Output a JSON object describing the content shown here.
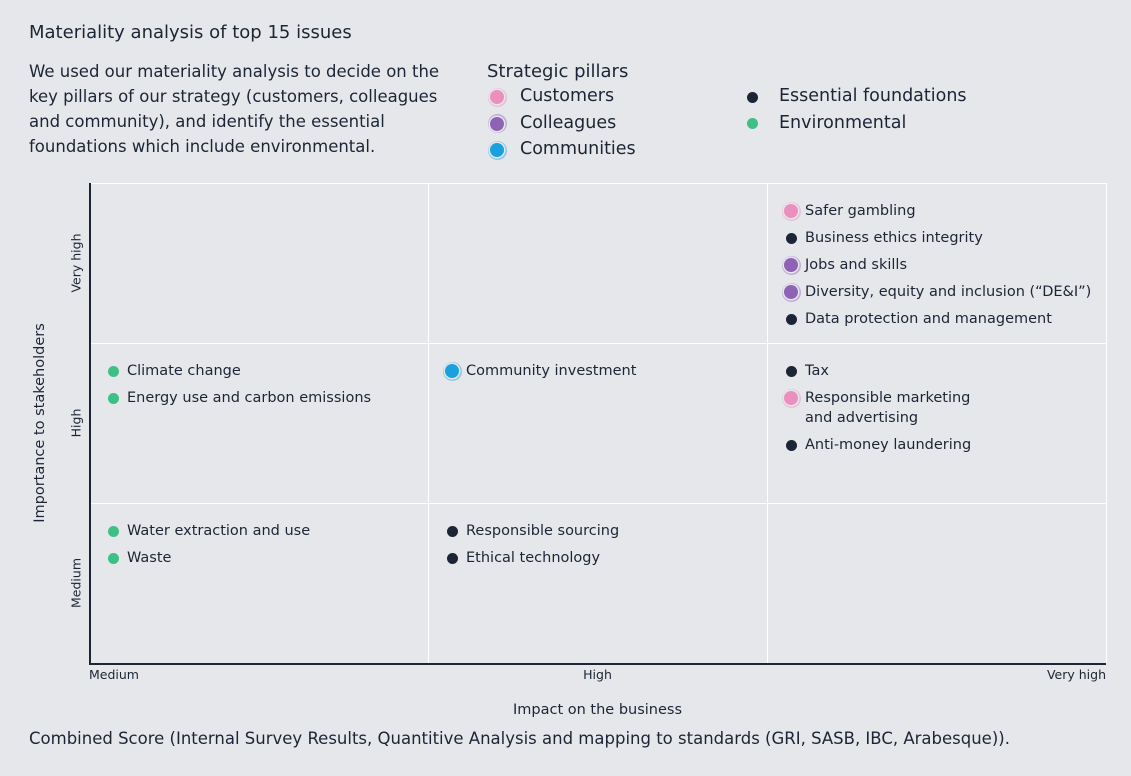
{
  "title": "Materiality analysis of top 15 issues",
  "description": "We used our materiality analysis to decide on the key pillars of our strategy (customers, colleagues and community), and identify the essential foundations which include environmental.",
  "legend": {
    "pillars": {
      "title": "Strategic pillars",
      "items": [
        {
          "label": "Customers",
          "color": "#ea8fbe"
        },
        {
          "label": "Colleagues",
          "color": "#8e63b6"
        },
        {
          "label": "Communities",
          "color": "#1aa0dc"
        }
      ]
    },
    "foundations": [
      {
        "label": "Essential foundations",
        "color": "#1c2536"
      },
      {
        "label": "Environmental",
        "color": "#3dbf85"
      }
    ]
  },
  "y_axis": {
    "title": "Importance to stakeholders",
    "labels": [
      "Very high",
      "High",
      "Medium"
    ]
  },
  "x_axis": {
    "title": "Impact on the business",
    "labels": [
      "Medium",
      "High",
      "Very high"
    ]
  },
  "grid": [
    [
      [],
      [],
      [
        {
          "label": "Safer gambling",
          "color": "#ea8fbe"
        },
        {
          "label": "Business ethics integrity",
          "color": "#1c2536"
        },
        {
          "label": "Jobs and skills",
          "color": "#8e63b6"
        },
        {
          "label": "Diversity, equity and inclusion (“DE&I”)",
          "color": "#8e63b6"
        },
        {
          "label": "Data protection and management",
          "color": "#1c2536"
        }
      ]
    ],
    [
      [
        {
          "label": "Climate change",
          "color": "#3dbf85"
        },
        {
          "label": "Energy use and carbon emissions",
          "color": "#3dbf85"
        }
      ],
      [
        {
          "label": "Community investment",
          "color": "#1aa0dc"
        }
      ],
      [
        {
          "label": "Tax",
          "color": "#1c2536"
        },
        {
          "label": [
            "Responsible marketing",
            "and advertising"
          ],
          "color": "#ea8fbe"
        },
        {
          "label": "Anti-money laundering",
          "color": "#1c2536"
        }
      ]
    ],
    [
      [
        {
          "label": "Water extraction and use",
          "color": "#3dbf85"
        },
        {
          "label": "Waste",
          "color": "#3dbf85"
        }
      ],
      [
        {
          "label": "Responsible sourcing",
          "color": "#1c2536"
        },
        {
          "label": "Ethical technology",
          "color": "#1c2536"
        }
      ],
      []
    ]
  ],
  "footnote": "Combined Score (Internal Survey Results, Quantitive Analysis and mapping to standards (GRI, SASB, IBC, Arabesque))."
}
